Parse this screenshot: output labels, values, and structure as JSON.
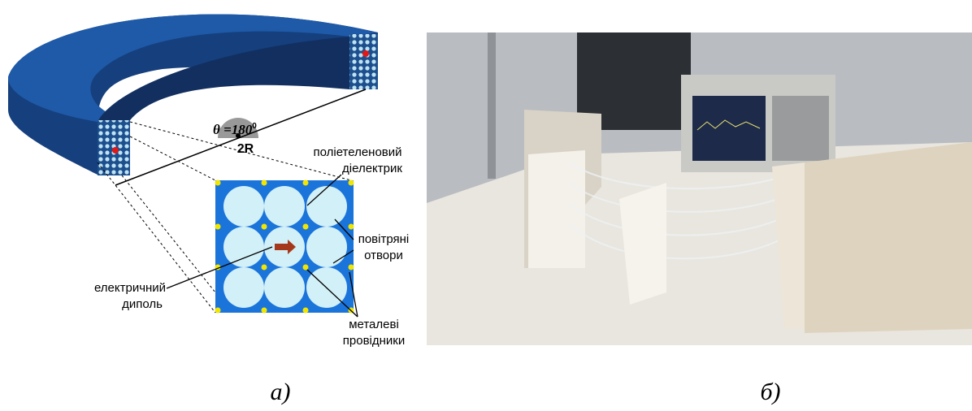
{
  "figure": {
    "left": {
      "angle_label": {
        "text": "θ =180",
        "superscript": "0"
      },
      "radius_label": "2R",
      "labels": {
        "dielectric": [
          "поліетеленовий",
          "діелектрик"
        ],
        "air_holes": [
          "повітряні",
          "отвори"
        ],
        "dipole": [
          "електричний",
          "диполь"
        ],
        "conductors": [
          "металеві",
          "провідники"
        ]
      },
      "caption": "а)"
    },
    "right": {
      "caption": "б)"
    }
  }
}
